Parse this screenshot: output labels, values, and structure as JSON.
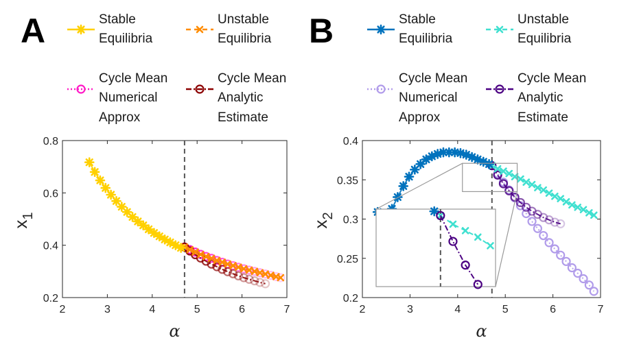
{
  "chart_data": [
    {
      "panel": "A",
      "type": "line",
      "xlabel": "α",
      "ylabel": "x",
      "ylabel_sub": "1",
      "xlim": [
        2,
        7
      ],
      "ylim": [
        0.2,
        0.8
      ],
      "xticks": [
        "2",
        "3",
        "4",
        "5",
        "6",
        "7"
      ],
      "yticks": [
        "0.2",
        "0.4",
        "0.6",
        "0.8"
      ],
      "critical_alpha": 4.72,
      "colors": {
        "stable": "#FFD000",
        "unstable": "#FF8C00",
        "cycle_numerical": "#FF1AC6",
        "cycle_analytic": "#8B0000"
      },
      "legend": [
        {
          "key": "stable",
          "line1": "Stable",
          "line2": "Equilibria",
          "line3": ""
        },
        {
          "key": "unstable",
          "line1": "Unstable",
          "line2": "Equilibria",
          "line3": ""
        },
        {
          "key": "cycle_numerical",
          "line1": "Cycle Mean",
          "line2": "Numerical",
          "line3": "Approx"
        },
        {
          "key": "cycle_analytic",
          "line1": "Cycle Mean",
          "line2": "Analytic",
          "line3": "Estimate"
        }
      ],
      "series": [
        {
          "name": "Stable Equilibria",
          "key": "stable",
          "x": [
            2.6,
            2.72,
            2.84,
            2.96,
            3.08,
            3.2,
            3.32,
            3.44,
            3.56,
            3.68,
            3.8,
            3.92,
            4.04,
            4.16,
            4.28,
            4.4,
            4.52,
            4.64
          ],
          "y": [
            0.717,
            0.68,
            0.648,
            0.619,
            0.593,
            0.569,
            0.547,
            0.527,
            0.508,
            0.491,
            0.476,
            0.461,
            0.447,
            0.434,
            0.422,
            0.411,
            0.4,
            0.39
          ]
        },
        {
          "name": "Unstable Equilibria",
          "key": "unstable",
          "x": [
            4.72,
            4.84,
            4.96,
            5.08,
            5.2,
            5.32,
            5.44,
            5.56,
            5.68,
            5.8,
            5.92,
            6.04,
            6.16,
            6.28,
            6.4,
            6.52,
            6.64,
            6.76,
            6.86
          ],
          "y": [
            0.393,
            0.383,
            0.374,
            0.365,
            0.357,
            0.35,
            0.342,
            0.335,
            0.328,
            0.322,
            0.316,
            0.31,
            0.305,
            0.3,
            0.295,
            0.29,
            0.285,
            0.28,
            0.276
          ]
        },
        {
          "name": "Cycle Mean Numerical Approx",
          "key": "cycle_numerical",
          "x": [
            4.72,
            4.84,
            4.96,
            5.08,
            5.2,
            5.32,
            5.44,
            5.56,
            5.68,
            5.8,
            5.92,
            6.04,
            6.16,
            6.28,
            6.4,
            6.52,
            6.64,
            6.76,
            6.86
          ],
          "y": [
            0.393,
            0.383,
            0.374,
            0.365,
            0.357,
            0.35,
            0.342,
            0.335,
            0.328,
            0.322,
            0.316,
            0.31,
            0.305,
            0.3,
            0.295,
            0.29,
            0.285,
            0.28,
            0.276
          ]
        },
        {
          "name": "Cycle Mean Analytic Estimate",
          "key": "cycle_analytic",
          "x": [
            4.72,
            4.84,
            4.96,
            5.08,
            5.2,
            5.32,
            5.44,
            5.56,
            5.68,
            5.8,
            5.92,
            6.04,
            6.16,
            6.28,
            6.4,
            6.52
          ],
          "y": [
            0.393,
            0.378,
            0.364,
            0.351,
            0.339,
            0.328,
            0.318,
            0.308,
            0.299,
            0.291,
            0.283,
            0.276,
            0.27,
            0.264,
            0.258,
            0.253
          ]
        }
      ]
    },
    {
      "panel": "B",
      "type": "line",
      "xlabel": "α",
      "ylabel": "x",
      "ylabel_sub": "2",
      "xlim": [
        2,
        7
      ],
      "ylim": [
        0.2,
        0.4
      ],
      "xticks": [
        "2",
        "3",
        "4",
        "5",
        "6",
        "7"
      ],
      "yticks": [
        "0.2",
        "0.25",
        "0.3",
        "0.35",
        "0.4"
      ],
      "critical_alpha": 4.72,
      "colors": {
        "stable": "#0072BD",
        "unstable": "#40E0D0",
        "cycle_numerical": "#B19CEA",
        "cycle_analytic": "#4B0082",
        "zoom": "#999999"
      },
      "legend": [
        {
          "key": "stable",
          "line1": "Stable",
          "line2": "Equilibria",
          "line3": ""
        },
        {
          "key": "unstable",
          "line1": "Unstable",
          "line2": "Equilibria",
          "line3": ""
        },
        {
          "key": "cycle_numerical",
          "line1": "Cycle Mean",
          "line2": "Numerical",
          "line3": "Approx"
        },
        {
          "key": "cycle_analytic",
          "line1": "Cycle Mean",
          "line2": "Analytic",
          "line3": "Estimate"
        }
      ],
      "zoom_region": {
        "x": [
          4.1,
          5.25
        ],
        "y": [
          0.335,
          0.371
        ]
      },
      "series": [
        {
          "name": "Stable Equilibria",
          "key": "stable",
          "x": [
            2.32,
            2.5,
            2.62,
            2.74,
            2.86,
            2.98,
            3.1,
            3.22,
            3.34,
            3.46,
            3.58,
            3.7,
            3.82,
            3.94,
            4.06,
            4.18,
            4.3,
            4.42,
            4.54,
            4.66
          ],
          "y": [
            0.309,
            0.305,
            0.313,
            0.328,
            0.342,
            0.354,
            0.363,
            0.37,
            0.376,
            0.38,
            0.383,
            0.385,
            0.385,
            0.385,
            0.384,
            0.382,
            0.379,
            0.376,
            0.373,
            0.37
          ]
        },
        {
          "name": "Unstable Equilibria",
          "key": "unstable",
          "x": [
            4.72,
            4.84,
            4.96,
            5.08,
            5.2,
            5.32,
            5.44,
            5.56,
            5.68,
            5.8,
            5.92,
            6.04,
            6.16,
            6.28,
            6.4,
            6.52,
            6.64,
            6.76,
            6.86
          ],
          "y": [
            0.368,
            0.364,
            0.361,
            0.358,
            0.354,
            0.351,
            0.347,
            0.344,
            0.34,
            0.337,
            0.333,
            0.329,
            0.326,
            0.322,
            0.318,
            0.315,
            0.312,
            0.308,
            0.305
          ]
        },
        {
          "name": "Cycle Mean Numerical Approx",
          "key": "cycle_numerical",
          "x": [
            4.72,
            4.84,
            4.96,
            5.08,
            5.2,
            5.32,
            5.44,
            5.56,
            5.68,
            5.8,
            5.92,
            6.04,
            6.16,
            6.28,
            6.4,
            6.52,
            6.64,
            6.76,
            6.86
          ],
          "y": [
            0.368,
            0.358,
            0.347,
            0.337,
            0.327,
            0.317,
            0.307,
            0.297,
            0.288,
            0.279,
            0.27,
            0.262,
            0.254,
            0.246,
            0.238,
            0.231,
            0.224,
            0.216,
            0.208
          ]
        },
        {
          "name": "Cycle Mean Analytic Estimate",
          "key": "cycle_analytic",
          "x": [
            4.72,
            4.84,
            4.96,
            5.08,
            5.2,
            5.32,
            5.44,
            5.56,
            5.68,
            5.8,
            5.92,
            6.04,
            6.16
          ],
          "y": [
            0.368,
            0.356,
            0.345,
            0.336,
            0.328,
            0.321,
            0.315,
            0.31,
            0.306,
            0.302,
            0.299,
            0.296,
            0.294
          ]
        }
      ]
    }
  ]
}
